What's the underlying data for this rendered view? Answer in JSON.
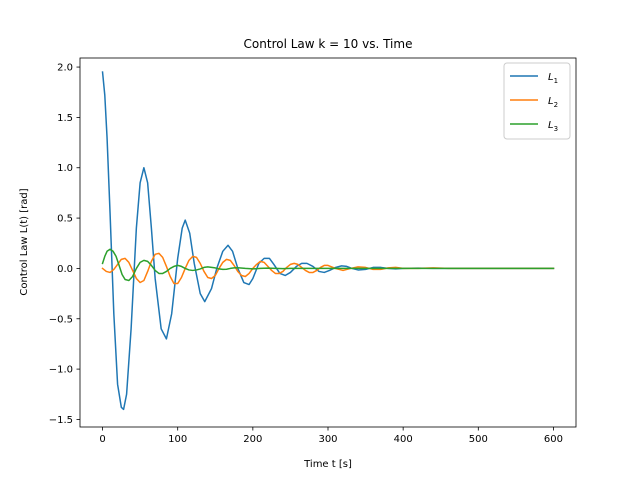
{
  "chart_data": {
    "type": "line",
    "title": "Control Law k = 10 vs. Time",
    "xlabel": "Time t [s]",
    "ylabel": "Control Law L(t) [rad]",
    "xlim": [
      -30,
      630
    ],
    "ylim": [
      -1.575,
      2.09
    ],
    "xticks": [
      0,
      100,
      200,
      300,
      400,
      500,
      600
    ],
    "xtick_labels": [
      "0",
      "100",
      "200",
      "300",
      "400",
      "500",
      "600"
    ],
    "yticks": [
      -1.5,
      -1.0,
      -0.5,
      0.0,
      0.5,
      1.0,
      1.5,
      2.0
    ],
    "ytick_labels": [
      "−1.5",
      "−1.0",
      "−0.5",
      "0.0",
      "0.5",
      "1.0",
      "1.5",
      "2.0"
    ],
    "grid": false,
    "legend_position": "top-right",
    "series": [
      {
        "name": "L",
        "subscript": "1",
        "color": "#1f77b4",
        "x": [
          0,
          3,
          6,
          10,
          15,
          20,
          25,
          28,
          32,
          38,
          45,
          50,
          55,
          60,
          65,
          70,
          78,
          85,
          92,
          100,
          106,
          110,
          116,
          122,
          130,
          136,
          145,
          152,
          160,
          167,
          173,
          180,
          188,
          195,
          200,
          208,
          215,
          222,
          228,
          236,
          243,
          250,
          258,
          265,
          272,
          280,
          288,
          295,
          302,
          310,
          318,
          325,
          332,
          340,
          350,
          360,
          370,
          380,
          390,
          400,
          420,
          440,
          460,
          480,
          500,
          520,
          540,
          560,
          580,
          600
        ],
        "y": [
          1.95,
          1.72,
          1.3,
          0.55,
          -0.45,
          -1.15,
          -1.38,
          -1.4,
          -1.25,
          -0.6,
          0.4,
          0.85,
          1.0,
          0.85,
          0.4,
          -0.1,
          -0.6,
          -0.7,
          -0.45,
          0.1,
          0.4,
          0.48,
          0.35,
          0.05,
          -0.25,
          -0.33,
          -0.2,
          0.0,
          0.17,
          0.23,
          0.17,
          0.0,
          -0.14,
          -0.16,
          -0.1,
          0.05,
          0.1,
          0.1,
          0.04,
          -0.05,
          -0.07,
          -0.04,
          0.02,
          0.05,
          0.05,
          0.02,
          -0.03,
          -0.04,
          -0.02,
          0.01,
          0.025,
          0.02,
          0.0,
          -0.015,
          -0.01,
          0.01,
          0.01,
          0.0,
          -0.005,
          0.0,
          0.003,
          0.0,
          0.0,
          0.0,
          0.0,
          0.0,
          0.0,
          0.0,
          0.0,
          0.0
        ]
      },
      {
        "name": "L",
        "subscript": "2",
        "color": "#ff7f0e",
        "x": [
          0,
          5,
          10,
          15,
          20,
          25,
          30,
          35,
          40,
          45,
          50,
          55,
          60,
          65,
          70,
          75,
          80,
          85,
          90,
          95,
          100,
          105,
          110,
          115,
          120,
          125,
          130,
          135,
          140,
          145,
          150,
          155,
          160,
          165,
          170,
          175,
          180,
          185,
          190,
          195,
          200,
          205,
          210,
          215,
          220,
          225,
          230,
          235,
          240,
          245,
          250,
          255,
          260,
          265,
          270,
          275,
          280,
          285,
          290,
          295,
          300,
          310,
          320,
          330,
          340,
          350,
          360,
          370,
          380,
          390,
          400,
          420,
          440,
          460,
          480,
          500,
          520,
          540,
          560,
          580,
          600
        ],
        "y": [
          0.0,
          -0.03,
          -0.04,
          -0.01,
          0.04,
          0.09,
          0.1,
          0.06,
          -0.02,
          -0.1,
          -0.14,
          -0.12,
          -0.03,
          0.07,
          0.14,
          0.15,
          0.11,
          0.02,
          -0.08,
          -0.15,
          -0.15,
          -0.09,
          0.0,
          0.08,
          0.12,
          0.11,
          0.05,
          -0.03,
          -0.09,
          -0.1,
          -0.07,
          0.0,
          0.06,
          0.09,
          0.08,
          0.03,
          -0.03,
          -0.07,
          -0.08,
          -0.05,
          0.0,
          0.04,
          0.07,
          0.06,
          0.02,
          -0.02,
          -0.05,
          -0.05,
          -0.03,
          0.01,
          0.04,
          0.05,
          0.04,
          0.01,
          -0.02,
          -0.04,
          -0.04,
          -0.02,
          0.01,
          0.03,
          0.03,
          0.0,
          -0.02,
          0.0,
          0.015,
          0.01,
          -0.01,
          -0.01,
          0.005,
          0.01,
          0.0,
          0.0,
          0.005,
          0.0,
          0.0,
          0.0,
          0.0,
          0.0,
          0.0,
          0.0,
          0.0
        ]
      },
      {
        "name": "L",
        "subscript": "3",
        "color": "#2ca02c",
        "x": [
          0,
          3,
          6,
          10,
          14,
          18,
          22,
          26,
          30,
          35,
          40,
          45,
          50,
          55,
          60,
          65,
          70,
          75,
          80,
          85,
          90,
          95,
          100,
          105,
          110,
          115,
          120,
          125,
          130,
          135,
          140,
          145,
          150,
          155,
          160,
          165,
          170,
          175,
          180,
          190,
          200,
          210,
          220,
          230,
          240,
          250,
          260,
          270,
          280,
          300,
          320,
          340,
          360,
          380,
          400,
          450,
          500,
          550,
          600
        ],
        "y": [
          0.05,
          0.12,
          0.17,
          0.19,
          0.17,
          0.12,
          0.03,
          -0.06,
          -0.11,
          -0.12,
          -0.08,
          0.0,
          0.06,
          0.08,
          0.07,
          0.03,
          -0.02,
          -0.05,
          -0.05,
          -0.03,
          0.0,
          0.02,
          0.03,
          0.02,
          0.0,
          -0.015,
          -0.02,
          -0.015,
          -0.005,
          0.01,
          0.015,
          0.01,
          0.005,
          -0.005,
          -0.01,
          -0.008,
          0.0,
          0.005,
          0.007,
          0.0,
          -0.005,
          0.0,
          0.003,
          0.0,
          -0.002,
          0.0,
          0.0,
          0.0,
          0.0,
          0.0,
          0.0,
          0.0,
          0.0,
          0.0,
          0.0,
          0.0,
          0.0,
          0.0,
          0.0
        ]
      }
    ]
  }
}
